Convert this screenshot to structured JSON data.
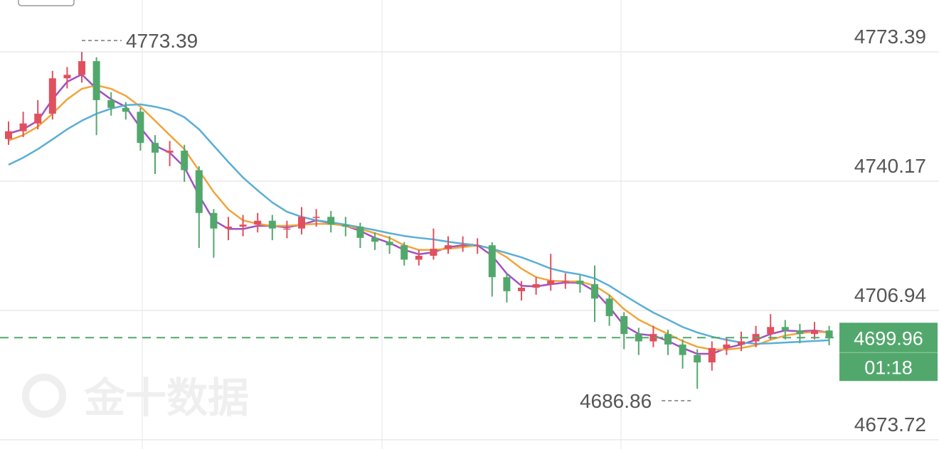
{
  "chart_data": {
    "type": "candlestick",
    "watermark": "金十数据",
    "up_color": "#e0505e",
    "down_color": "#52a86c",
    "open": [
      4751.0,
      4753.0,
      4755.0,
      4757.5,
      4766.6,
      4767.5,
      4771.0,
      4761.0,
      4759.0,
      4758.0,
      4750.0,
      4747.5,
      4748.0,
      4743.0,
      4732.0,
      4728.0,
      4728.5,
      4729.0,
      4730.0,
      4728.0,
      4728.0,
      4731.0,
      4731.0,
      4729.0,
      4728.5,
      4725.6,
      4724.6,
      4723.7,
      4720.0,
      4721.0,
      4722.8,
      4723.7,
      4723.7,
      4723.7,
      4715.5,
      4711.9,
      4712.8,
      4713.7,
      4714.6,
      4714.6,
      4713.7,
      4710.0,
      4705.5,
      4700.9,
      4699.0,
      4700.9,
      4698.2,
      4695.5,
      4693.6,
      4697.3,
      4698.2,
      4699.0,
      4700.9,
      4702.7,
      4701.8,
      4700.9,
      4701.8
    ],
    "high": [
      4755.5,
      4758.0,
      4761.0,
      4768.5,
      4769.5,
      4773.39,
      4772.0,
      4763.0,
      4760.5,
      4759.0,
      4752.0,
      4750.5,
      4749.5,
      4744.0,
      4733.0,
      4731.0,
      4731.5,
      4732.0,
      4731.5,
      4730.0,
      4733.5,
      4733.0,
      4732.5,
      4731.0,
      4729.5,
      4727.0,
      4726.0,
      4724.5,
      4722.5,
      4728.0,
      4726.0,
      4726.0,
      4725.5,
      4724.5,
      4716.5,
      4714.5,
      4715.5,
      4721.5,
      4716.5,
      4716.0,
      4718.5,
      4711.0,
      4706.5,
      4702.5,
      4703.0,
      4702.0,
      4699.5,
      4697.0,
      4699.0,
      4700.0,
      4701.5,
      4703.0,
      4706.0,
      4704.5,
      4703.5,
      4704.0,
      4703.0
    ],
    "low": [
      4749.5,
      4751.5,
      4753.5,
      4756.0,
      4764.0,
      4765.5,
      4752.0,
      4757.0,
      4756.0,
      4748.0,
      4742.0,
      4744.0,
      4740.0,
      4723.0,
      4720.5,
      4725.0,
      4726.0,
      4727.0,
      4725.0,
      4725.5,
      4726.5,
      4728.5,
      4727.0,
      4726.0,
      4723.0,
      4722.5,
      4721.5,
      4718.5,
      4718.5,
      4720.0,
      4721.5,
      4722.0,
      4721.5,
      4710.5,
      4709.0,
      4709.5,
      4711.0,
      4712.0,
      4712.5,
      4711.5,
      4704.0,
      4703.0,
      4697.0,
      4695.5,
      4697.5,
      4695.5,
      4692.0,
      4686.86,
      4691.5,
      4695.5,
      4696.5,
      4697.5,
      4699.5,
      4699.5,
      4698.5,
      4699.5,
      4698.0
    ],
    "close": [
      4753.0,
      4755.0,
      4757.5,
      4766.6,
      4767.5,
      4771.0,
      4761.0,
      4759.0,
      4758.0,
      4750.0,
      4747.5,
      4748.0,
      4743.0,
      4732.0,
      4728.0,
      4728.5,
      4729.0,
      4730.0,
      4728.0,
      4728.0,
      4731.0,
      4731.0,
      4729.0,
      4728.5,
      4725.6,
      4724.6,
      4723.7,
      4720.0,
      4721.0,
      4722.8,
      4723.7,
      4723.7,
      4723.7,
      4715.5,
      4711.9,
      4712.8,
      4713.7,
      4714.6,
      4714.6,
      4713.7,
      4710.0,
      4705.5,
      4700.9,
      4699.0,
      4700.9,
      4698.2,
      4695.5,
      4693.6,
      4697.3,
      4698.2,
      4699.0,
      4700.9,
      4702.7,
      4701.8,
      4700.9,
      4701.8,
      4699.96
    ],
    "series": [
      {
        "color": "#a24fc4",
        "values": [
          4752.4,
          4753.5,
          4755.7,
          4761.2,
          4765.7,
          4767.6,
          4763.9,
          4761.2,
          4759.3,
          4753.9,
          4749.3,
          4747.5,
          4743.8,
          4736.5,
          4730.1,
          4727.9,
          4727.9,
          4728.7,
          4728.7,
          4728.3,
          4729.0,
          4730.1,
          4729.4,
          4728.7,
          4727.4,
          4725.6,
          4724.3,
          4722.5,
          4721.4,
          4721.9,
          4723.2,
          4723.7,
          4723.7,
          4721.0,
          4716.4,
          4713.3,
          4713.1,
          4713.7,
          4714.1,
          4714.1,
          4711.9,
          4707.8,
          4703.1,
          4700.9,
          4700.5,
          4699.1,
          4697.3,
          4695.8,
          4695.8,
          4697.3,
          4698.2,
          4699.4,
          4700.9,
          4701.8,
          4701.6,
          4701.8,
          4701.3
        ]
      },
      {
        "color": "#f0a53c",
        "values": [
          4750.6,
          4752.0,
          4754.2,
          4757.5,
          4761.2,
          4763.9,
          4764.8,
          4763.9,
          4762.1,
          4759.3,
          4755.7,
          4752.0,
          4748.4,
          4742.9,
          4737.4,
          4732.9,
          4730.1,
          4729.2,
          4728.7,
          4728.7,
          4729.0,
          4729.2,
          4729.2,
          4728.7,
          4727.9,
          4726.8,
          4725.6,
          4723.7,
          4722.5,
          4722.5,
          4722.8,
          4723.2,
          4723.7,
          4722.8,
          4720.6,
          4717.7,
          4715.5,
          4714.6,
          4714.4,
          4714.4,
          4713.3,
          4710.9,
          4707.3,
          4704.6,
          4702.7,
          4700.9,
          4699.1,
          4697.6,
          4696.9,
          4696.9,
          4697.3,
          4698.0,
          4699.4,
          4700.5,
          4701.1,
          4701.5,
          4701.3
        ]
      },
      {
        "color": "#5aaed6",
        "values": [
          4744.4,
          4746.2,
          4748.4,
          4750.9,
          4753.5,
          4755.7,
          4757.5,
          4758.8,
          4759.7,
          4759.9,
          4759.3,
          4758.4,
          4756.6,
          4753.5,
          4749.3,
          4745.1,
          4741.1,
          4737.8,
          4734.7,
          4732.3,
          4731.0,
          4730.1,
          4729.6,
          4729.0,
          4728.3,
          4727.6,
          4726.8,
          4726.1,
          4725.6,
          4725.2,
          4724.6,
          4724.1,
          4723.7,
          4722.8,
          4721.7,
          4720.6,
          4719.2,
          4717.7,
          4716.8,
          4716.2,
          4715.2,
          4713.3,
          4710.9,
          4708.6,
          4706.4,
          4704.6,
          4702.7,
          4701.3,
          4700.2,
          4699.4,
          4698.7,
          4698.4,
          4698.5,
          4698.7,
          4698.9,
          4699.1,
          4699.3
        ]
      }
    ],
    "ylim": [
      4671.35,
      4786.72
    ],
    "yticks": [
      4773.39,
      4740.17,
      4706.94,
      4673.72
    ],
    "grid": true,
    "high_marker": 4773.39,
    "low_marker": 4686.86,
    "last_price": 4699.96,
    "last_color": "#52a86c",
    "countdown": "01:18"
  }
}
